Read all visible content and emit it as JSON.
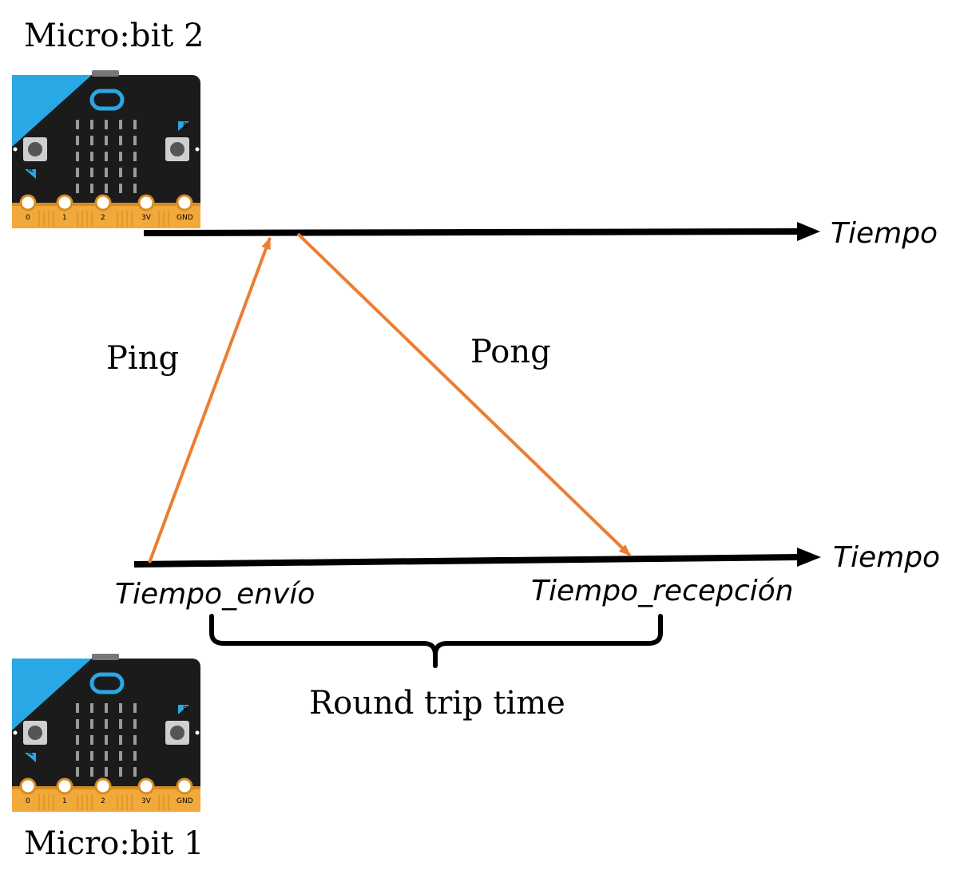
{
  "devices": {
    "top": {
      "title": "Micro:bit 2"
    },
    "bottom": {
      "title": "Micro:bit 1"
    }
  },
  "board": {
    "button_a": "A",
    "button_b": "B",
    "pins": [
      "0",
      "1",
      "2",
      "3V",
      "GND"
    ]
  },
  "timelines": {
    "top": {
      "label": "Tiempo"
    },
    "bottom": {
      "label": "Tiempo"
    }
  },
  "messages": {
    "ping": "Ping",
    "pong": "Pong"
  },
  "timestamps": {
    "send": "Tiempo_envío",
    "receive": "Tiempo_recepción"
  },
  "interval": {
    "label": "Round trip time"
  },
  "colors": {
    "message_arrow": "#ED7D31",
    "timeline": "#000000",
    "board_body": "#1b1b1b",
    "board_accent": "#2aa8e6",
    "board_pins": "#f2a93b"
  }
}
